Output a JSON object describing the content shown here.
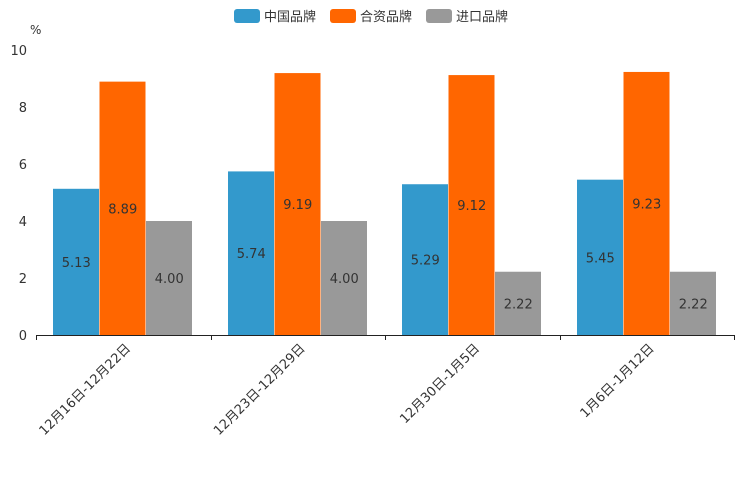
{
  "chart_data": {
    "type": "bar",
    "title": "",
    "xlabel": "",
    "ylabel": "%",
    "ylim": [
      0,
      10
    ],
    "yticks": [
      0,
      2,
      4,
      6,
      8,
      10
    ],
    "grid": false,
    "legend_position": "top-center",
    "categories": [
      "12月16日-12月22日",
      "12月23日-12月29日",
      "12月30日-1月5日",
      "1月6日-1月12日"
    ],
    "series": [
      {
        "name": "中国品牌",
        "values": [
          5.13,
          5.74,
          5.29,
          5.45
        ],
        "color": "#3399cc",
        "labels": [
          "5.13",
          "5.74",
          "5.29",
          "5.45"
        ]
      },
      {
        "name": "合资品牌",
        "values": [
          8.89,
          9.19,
          9.12,
          9.23
        ],
        "color": "#ff6600",
        "labels": [
          "8.89",
          "9.19",
          "9.12",
          "9.23"
        ]
      },
      {
        "name": "进口品牌",
        "values": [
          4.0,
          4.0,
          2.22,
          2.22
        ],
        "color": "#999999",
        "labels": [
          "4.00",
          "4.00",
          "2.22",
          "2.22"
        ]
      }
    ]
  }
}
